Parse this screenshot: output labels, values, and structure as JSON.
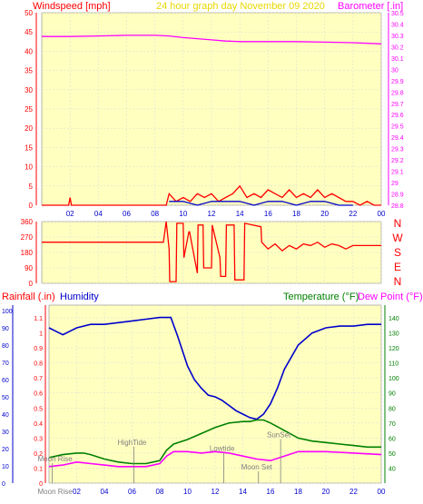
{
  "colors": {
    "background": "#ffffff",
    "plot_bg": "#ffffc0",
    "grid": "#d8d8d8",
    "red": "#ff0000",
    "magenta": "#ff00ff",
    "blue": "#0000cc",
    "green": "#008000",
    "yellow": "#e8d800",
    "gray": "#808080"
  },
  "chart_data": [
    {
      "type": "line",
      "header": {
        "left": "Windspeed [mph]",
        "center": "24 hour graph day   November 09 2020",
        "right": "Barometer [.in]"
      },
      "x_ticks": [
        "02",
        "04",
        "06",
        "08",
        "10",
        "12",
        "14",
        "16",
        "18",
        "20",
        "22",
        "00"
      ],
      "y_left": {
        "min": 0,
        "max": 50,
        "ticks": [
          "0",
          "5",
          "10",
          "15",
          "20",
          "25",
          "30",
          "35",
          "40",
          "45",
          "50"
        ]
      },
      "y_right": {
        "min": 28.8,
        "max": 30.5,
        "ticks": [
          "28.8",
          "28.9",
          "29",
          "29.1",
          "29.2",
          "29.3",
          "29.4",
          "29.5",
          "29.6",
          "29.7",
          "29.8",
          "29.9",
          "30",
          "30.1",
          "30.2",
          "30.3",
          "30.4",
          "30.5"
        ]
      },
      "series": [
        {
          "color": "#ff00ff",
          "axis": "right",
          "x": [
            0,
            2,
            4,
            6,
            8,
            9,
            10,
            12,
            13,
            14,
            16,
            18,
            20,
            22,
            24
          ],
          "y": [
            30.29,
            30.29,
            30.295,
            30.3,
            30.3,
            30.295,
            30.28,
            30.26,
            30.25,
            30.245,
            30.245,
            30.245,
            30.24,
            30.235,
            30.225
          ]
        },
        {
          "color": "#ff0000",
          "axis": "left",
          "x": [
            0,
            1.9,
            2,
            2.1,
            8.8,
            9,
            9.5,
            10,
            10.5,
            11,
            11.5,
            12,
            12.5,
            13,
            13.5,
            14,
            14.5,
            15,
            15.5,
            16,
            16.5,
            17,
            17.5,
            18,
            18.5,
            19,
            19.5,
            20,
            20.5,
            21,
            21.5,
            22,
            22.5,
            23,
            23.5,
            24
          ],
          "y": [
            0,
            0,
            2,
            0,
            0,
            3,
            1,
            2,
            1,
            3,
            2,
            3,
            1,
            2,
            3,
            5,
            2,
            3,
            2,
            4,
            3,
            2,
            4,
            2,
            3,
            2,
            4,
            2,
            3,
            2,
            1,
            1,
            0,
            1,
            0,
            0
          ]
        },
        {
          "color": "#0000cc",
          "axis": "left",
          "x": [
            9,
            10,
            11,
            12,
            13,
            14,
            15,
            16,
            17,
            18,
            19,
            20,
            21,
            22
          ],
          "y": [
            1,
            1,
            0,
            1,
            1,
            1,
            0,
            1,
            1,
            0,
            1,
            1,
            0,
            0
          ]
        }
      ]
    },
    {
      "type": "line",
      "x_ticks": [
        "02",
        "04",
        "06",
        "08",
        "10",
        "12",
        "14",
        "16",
        "18",
        "20",
        "22",
        "00"
      ],
      "y_left": {
        "min": 0,
        "max": 360,
        "ticks": [
          "0",
          "90",
          "180",
          "270",
          "360"
        ]
      },
      "directions": [
        "N",
        "W",
        "S",
        "E",
        "N"
      ],
      "series": [
        {
          "color": "#ff0000",
          "x": [
            0,
            8.6,
            8.8,
            9.0,
            9.05,
            9.5,
            9.55,
            10.0,
            10.05,
            10.4,
            10.45,
            11.0,
            11.05,
            11.4,
            11.45,
            12.0,
            12.05,
            12.6,
            12.65,
            13.0,
            13.05,
            13.6,
            13.65,
            14.3,
            14.35,
            15.5,
            15.55,
            16.0,
            16.5,
            17.0,
            17.5,
            18.0,
            18.5,
            19.0,
            19.5,
            20.0,
            20.5,
            21.0,
            21.5,
            22.0,
            24.0
          ],
          "y": [
            240,
            240,
            360,
            200,
            10,
            10,
            350,
            350,
            150,
            300,
            300,
            60,
            340,
            340,
            90,
            90,
            340,
            150,
            40,
            40,
            340,
            340,
            20,
            20,
            350,
            330,
            240,
            200,
            230,
            190,
            220,
            200,
            230,
            220,
            240,
            210,
            230,
            220,
            200,
            220,
            220
          ]
        }
      ]
    },
    {
      "type": "line",
      "header": {
        "left": "Rainfall (.in)",
        "left2": "Humidity",
        "right": "Temperature (°F)",
        "right2": "Dew Point (°F)"
      },
      "x_ticks": [
        "02",
        "04",
        "06",
        "08",
        "10",
        "12",
        "14",
        "16",
        "18",
        "20",
        "22",
        "00"
      ],
      "y_humidity": {
        "min": 0,
        "max": 100,
        "ticks": [
          "0",
          "10",
          "20",
          "30",
          "40",
          "50",
          "60",
          "70",
          "80",
          "90",
          "100"
        ]
      },
      "y_rain": {
        "min": 0,
        "max": 1.1,
        "ticks": [
          "0",
          "0.1",
          "0.2",
          "0.3",
          "0.4",
          "0.5",
          "0.6",
          "0.7",
          "0.8",
          "0.9",
          "1",
          "1.1"
        ]
      },
      "y_temp": {
        "min": 30,
        "max": 140,
        "ticks": [
          "40",
          "50",
          "60",
          "70",
          "80",
          "90",
          "100",
          "110",
          "120",
          "130",
          "140"
        ]
      },
      "series": [
        {
          "color": "#0000cc",
          "axis": "humidity",
          "x": [
            0,
            0.5,
            1,
            1.5,
            2,
            3,
            4,
            5,
            6,
            7,
            8,
            8.8,
            9.3,
            10,
            10.5,
            11,
            11.5,
            12,
            12.5,
            13,
            13.5,
            14,
            14.5,
            15,
            15.5,
            16,
            16.5,
            17,
            18,
            19,
            20,
            21,
            22,
            23,
            24
          ],
          "y": [
            90,
            88,
            86,
            88,
            90,
            92,
            92,
            93,
            94,
            95,
            96,
            96,
            85,
            68,
            60,
            55,
            51,
            50,
            48,
            45,
            42,
            40,
            38,
            37,
            40,
            46,
            55,
            66,
            80,
            87,
            90,
            91,
            91,
            92,
            92
          ]
        },
        {
          "color": "#008000",
          "axis": "temp",
          "x": [
            0,
            1,
            2,
            2.5,
            3,
            4,
            5,
            6,
            7,
            8,
            8.5,
            9,
            10,
            11,
            12,
            13,
            14,
            14.5,
            15,
            15.5,
            16,
            17,
            18,
            19,
            20,
            21,
            22,
            23,
            24
          ],
          "y": [
            47,
            49,
            50,
            50,
            49,
            46,
            44,
            43,
            43,
            45,
            52,
            56,
            59,
            63,
            67,
            70,
            71,
            71,
            72,
            72,
            70,
            65,
            60,
            58,
            57,
            56,
            55,
            54,
            54
          ]
        },
        {
          "color": "#ff00ff",
          "axis": "temp",
          "x": [
            0,
            1,
            2,
            3,
            4,
            5,
            6,
            7,
            8,
            8.5,
            9,
            10,
            11,
            12,
            13,
            14,
            15,
            16,
            17,
            18,
            20,
            22,
            24
          ],
          "y": [
            41,
            42,
            44,
            43,
            42,
            41,
            41,
            41,
            43,
            48,
            51,
            51,
            50,
            51,
            50,
            48,
            46,
            45,
            48,
            51,
            51,
            50,
            49
          ]
        }
      ],
      "annotations": [
        {
          "text": "Moon Rise",
          "x": 0.1,
          "level": 0.145,
          "marker": true
        },
        {
          "text": "Moon Rise",
          "x": 0.1,
          "level": 0.005,
          "marker": false
        },
        {
          "text": "HighTide",
          "x": 6.0,
          "level": 0.255,
          "marker": true
        },
        {
          "text": "Lowtide",
          "x": 12.5,
          "level": 0.215,
          "marker": true
        },
        {
          "text": "SunSet",
          "x": 16.6,
          "level": 0.305,
          "marker": true
        },
        {
          "text": "Moon Set",
          "x": 15.0,
          "level": 0.09,
          "marker": true
        }
      ]
    }
  ]
}
